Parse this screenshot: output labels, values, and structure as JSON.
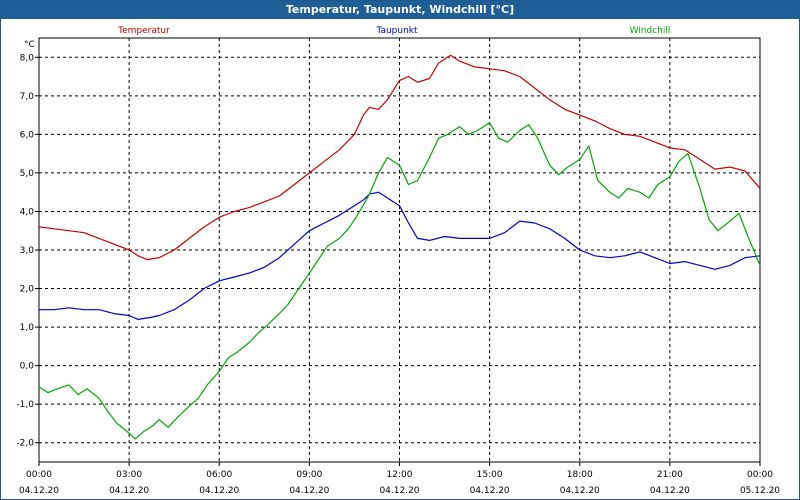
{
  "window": {
    "title": "Temperatur, Taupunkt, Windchill [°C]"
  },
  "chart_data": {
    "type": "line",
    "title": "Temperatur, Taupunkt, Windchill [°C]",
    "ylabel": "°C",
    "ylim": [
      -2.5,
      8.5
    ],
    "xlim": [
      0,
      24
    ],
    "grid": true,
    "y_ticks": [
      "8,0",
      "7,0",
      "6,0",
      "5,0",
      "4,0",
      "3,0",
      "2,0",
      "1,0",
      "0,0",
      "-1,0",
      "-2,0"
    ],
    "y_tick_values": [
      8,
      7,
      6,
      5,
      4,
      3,
      2,
      1,
      0,
      -1,
      -2
    ],
    "x_ticks": [
      {
        "time": "00:00",
        "date": "04.12.20",
        "hour": 0
      },
      {
        "time": "03:00",
        "date": "04.12.20",
        "hour": 3
      },
      {
        "time": "06:00",
        "date": "04.12.20",
        "hour": 6
      },
      {
        "time": "09:00",
        "date": "04.12.20",
        "hour": 9
      },
      {
        "time": "12:00",
        "date": "04.12.20",
        "hour": 12
      },
      {
        "time": "15:00",
        "date": "04.12.20",
        "hour": 15
      },
      {
        "time": "18:00",
        "date": "04.12.20",
        "hour": 18
      },
      {
        "time": "21:00",
        "date": "04.12.20",
        "hour": 21
      },
      {
        "time": "00:00",
        "date": "05.12.20",
        "hour": 24
      }
    ],
    "series": [
      {
        "name": "Temperatur",
        "color": "#cc0000",
        "points": [
          [
            0,
            3.6
          ],
          [
            0.5,
            3.55
          ],
          [
            1,
            3.5
          ],
          [
            1.5,
            3.45
          ],
          [
            2,
            3.3
          ],
          [
            2.5,
            3.15
          ],
          [
            3,
            3.0
          ],
          [
            3.3,
            2.85
          ],
          [
            3.6,
            2.75
          ],
          [
            4,
            2.8
          ],
          [
            4.5,
            3.0
          ],
          [
            5,
            3.3
          ],
          [
            5.5,
            3.6
          ],
          [
            6,
            3.85
          ],
          [
            6.5,
            4.0
          ],
          [
            7,
            4.1
          ],
          [
            7.5,
            4.25
          ],
          [
            8,
            4.4
          ],
          [
            8.5,
            4.7
          ],
          [
            9,
            5.0
          ],
          [
            9.5,
            5.3
          ],
          [
            10,
            5.6
          ],
          [
            10.5,
            6.0
          ],
          [
            10.8,
            6.5
          ],
          [
            11,
            6.7
          ],
          [
            11.3,
            6.65
          ],
          [
            11.6,
            6.9
          ],
          [
            12,
            7.4
          ],
          [
            12.3,
            7.5
          ],
          [
            12.6,
            7.35
          ],
          [
            13,
            7.45
          ],
          [
            13.3,
            7.85
          ],
          [
            13.7,
            8.05
          ],
          [
            14,
            7.9
          ],
          [
            14.5,
            7.75
          ],
          [
            15,
            7.7
          ],
          [
            15.5,
            7.65
          ],
          [
            16,
            7.5
          ],
          [
            16.5,
            7.2
          ],
          [
            17,
            6.9
          ],
          [
            17.5,
            6.65
          ],
          [
            18,
            6.5
          ],
          [
            18.5,
            6.35
          ],
          [
            19,
            6.15
          ],
          [
            19.5,
            6.0
          ],
          [
            20,
            5.95
          ],
          [
            20.5,
            5.8
          ],
          [
            21,
            5.65
          ],
          [
            21.5,
            5.6
          ],
          [
            22,
            5.35
          ],
          [
            22.5,
            5.1
          ],
          [
            23,
            5.15
          ],
          [
            23.5,
            5.05
          ],
          [
            24,
            4.6
          ]
        ]
      },
      {
        "name": "Taupunkt",
        "color": "#0000cc",
        "points": [
          [
            0,
            1.45
          ],
          [
            0.5,
            1.45
          ],
          [
            1,
            1.5
          ],
          [
            1.5,
            1.45
          ],
          [
            2,
            1.45
          ],
          [
            2.5,
            1.35
          ],
          [
            3,
            1.3
          ],
          [
            3.3,
            1.2
          ],
          [
            3.7,
            1.25
          ],
          [
            4,
            1.3
          ],
          [
            4.5,
            1.45
          ],
          [
            5,
            1.7
          ],
          [
            5.5,
            2.0
          ],
          [
            6,
            2.2
          ],
          [
            6.5,
            2.3
          ],
          [
            7,
            2.4
          ],
          [
            7.5,
            2.55
          ],
          [
            8,
            2.8
          ],
          [
            8.5,
            3.15
          ],
          [
            9,
            3.5
          ],
          [
            9.5,
            3.7
          ],
          [
            10,
            3.9
          ],
          [
            10.5,
            4.15
          ],
          [
            10.8,
            4.3
          ],
          [
            11,
            4.45
          ],
          [
            11.3,
            4.5
          ],
          [
            11.6,
            4.35
          ],
          [
            12,
            4.15
          ],
          [
            12.3,
            3.7
          ],
          [
            12.6,
            3.3
          ],
          [
            13,
            3.25
          ],
          [
            13.5,
            3.35
          ],
          [
            14,
            3.3
          ],
          [
            14.5,
            3.3
          ],
          [
            15,
            3.3
          ],
          [
            15.5,
            3.45
          ],
          [
            16,
            3.75
          ],
          [
            16.5,
            3.7
          ],
          [
            17,
            3.55
          ],
          [
            17.5,
            3.3
          ],
          [
            18,
            3.0
          ],
          [
            18.5,
            2.85
          ],
          [
            19,
            2.8
          ],
          [
            19.5,
            2.85
          ],
          [
            20,
            2.95
          ],
          [
            20.5,
            2.8
          ],
          [
            21,
            2.65
          ],
          [
            21.5,
            2.7
          ],
          [
            22,
            2.6
          ],
          [
            22.5,
            2.5
          ],
          [
            23,
            2.6
          ],
          [
            23.5,
            2.8
          ],
          [
            24,
            2.85
          ]
        ]
      },
      {
        "name": "Windchill",
        "color": "#00aa00",
        "points": [
          [
            0,
            -0.55
          ],
          [
            0.3,
            -0.7
          ],
          [
            0.6,
            -0.6
          ],
          [
            1,
            -0.5
          ],
          [
            1.3,
            -0.75
          ],
          [
            1.6,
            -0.6
          ],
          [
            2,
            -0.85
          ],
          [
            2.3,
            -1.2
          ],
          [
            2.6,
            -1.5
          ],
          [
            3,
            -1.75
          ],
          [
            3.2,
            -1.9
          ],
          [
            3.5,
            -1.7
          ],
          [
            3.8,
            -1.55
          ],
          [
            4,
            -1.4
          ],
          [
            4.3,
            -1.6
          ],
          [
            4.6,
            -1.35
          ],
          [
            5,
            -1.05
          ],
          [
            5.3,
            -0.85
          ],
          [
            5.6,
            -0.5
          ],
          [
            6,
            -0.15
          ],
          [
            6.3,
            0.2
          ],
          [
            6.6,
            0.35
          ],
          [
            7,
            0.6
          ],
          [
            7.3,
            0.85
          ],
          [
            7.6,
            1.05
          ],
          [
            8,
            1.35
          ],
          [
            8.3,
            1.6
          ],
          [
            8.6,
            1.95
          ],
          [
            9,
            2.4
          ],
          [
            9.3,
            2.75
          ],
          [
            9.6,
            3.1
          ],
          [
            10,
            3.3
          ],
          [
            10.3,
            3.55
          ],
          [
            10.6,
            3.9
          ],
          [
            11,
            4.45
          ],
          [
            11.3,
            5.0
          ],
          [
            11.6,
            5.4
          ],
          [
            12,
            5.2
          ],
          [
            12.3,
            4.7
          ],
          [
            12.6,
            4.8
          ],
          [
            13,
            5.4
          ],
          [
            13.3,
            5.9
          ],
          [
            13.6,
            6.0
          ],
          [
            14,
            6.2
          ],
          [
            14.3,
            6.0
          ],
          [
            14.6,
            6.1
          ],
          [
            15,
            6.3
          ],
          [
            15.3,
            5.9
          ],
          [
            15.6,
            5.8
          ],
          [
            16,
            6.1
          ],
          [
            16.3,
            6.25
          ],
          [
            16.6,
            5.9
          ],
          [
            17,
            5.2
          ],
          [
            17.3,
            4.95
          ],
          [
            17.6,
            5.15
          ],
          [
            18,
            5.35
          ],
          [
            18.3,
            5.7
          ],
          [
            18.6,
            4.8
          ],
          [
            19,
            4.5
          ],
          [
            19.3,
            4.35
          ],
          [
            19.6,
            4.6
          ],
          [
            20,
            4.5
          ],
          [
            20.3,
            4.35
          ],
          [
            20.6,
            4.7
          ],
          [
            21,
            4.9
          ],
          [
            21.3,
            5.3
          ],
          [
            21.6,
            5.5
          ],
          [
            22,
            4.6
          ],
          [
            22.3,
            3.8
          ],
          [
            22.6,
            3.5
          ],
          [
            23,
            3.75
          ],
          [
            23.3,
            3.95
          ],
          [
            23.6,
            3.35
          ],
          [
            24,
            2.6
          ]
        ]
      }
    ]
  }
}
